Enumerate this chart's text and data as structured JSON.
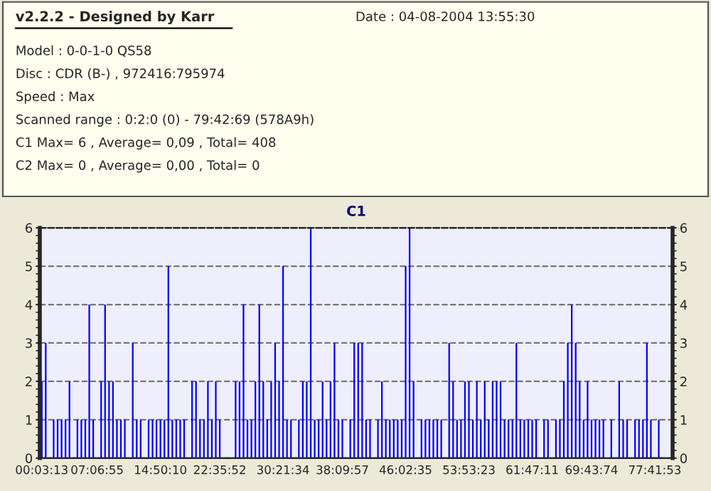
{
  "chart_data": [
    {
      "type": "other",
      "title": "v2.2.2 - Designed by Karr",
      "annotations": [
        "Date : 04-08-2004 13:55:30",
        "Model : 0-0-1-0 QS58",
        "Disc : CDR (B-) , 972416:795974",
        "Speed : Max",
        "Scanned range : 0:2:0 (0) - 79:42:69 (578A9h)",
        "C1 Max= 6 , Average= 0,09 , Total= 408",
        "C2 Max= 0 , Average= 0,00 , Total= 0"
      ]
    },
    {
      "type": "bar",
      "title": "C1",
      "color": "#0000ff",
      "grid": "y",
      "categories": [
        "00:03:13",
        null,
        null,
        null,
        null,
        null,
        null,
        null,
        null,
        null,
        null,
        null,
        null,
        null,
        "07:06:55",
        null,
        null,
        null,
        null,
        null,
        null,
        null,
        null,
        null,
        null,
        null,
        null,
        null,
        null,
        null,
        "14:50:10",
        null,
        null,
        null,
        null,
        null,
        null,
        null,
        null,
        null,
        null,
        null,
        null,
        null,
        null,
        "22:35:52",
        null,
        null,
        null,
        null,
        null,
        null,
        null,
        null,
        null,
        null,
        null,
        null,
        null,
        null,
        null,
        "30:21:34",
        null,
        null,
        null,
        null,
        null,
        null,
        null,
        null,
        null,
        null,
        null,
        null,
        null,
        null,
        "38:09:57",
        null,
        null,
        null,
        null,
        null,
        null,
        null,
        null,
        null,
        null,
        null,
        null,
        null,
        null,
        null,
        "46:02:35",
        null,
        null,
        null,
        null,
        null,
        null,
        null,
        null,
        null,
        null,
        null,
        null,
        null,
        null,
        null,
        "53:53:23",
        null,
        null,
        null,
        null,
        null,
        null,
        null,
        null,
        null,
        null,
        null,
        null,
        null,
        null,
        null,
        "61:47:11",
        null,
        null,
        null,
        null,
        null,
        null,
        null,
        null,
        null,
        null,
        null,
        null,
        null,
        null,
        "69:43:74",
        null,
        null,
        null,
        null,
        null,
        null,
        null,
        null,
        null,
        null,
        null,
        null,
        null,
        null,
        null,
        "77:41:53",
        null,
        null,
        null,
        null
      ],
      "values": [
        2,
        3,
        0,
        1,
        1,
        1,
        1,
        2,
        0,
        1,
        1,
        1,
        4,
        1,
        0,
        2,
        4,
        2,
        2,
        1,
        1,
        1,
        0,
        3,
        1,
        1,
        0,
        1,
        1,
        1,
        1,
        1,
        5,
        1,
        1,
        1,
        1,
        0,
        2,
        2,
        1,
        1,
        2,
        1,
        2,
        1,
        0,
        0,
        0,
        2,
        2,
        4,
        1,
        1,
        2,
        4,
        2,
        1,
        2,
        3,
        2,
        5,
        1,
        1,
        0,
        1,
        2,
        2,
        6,
        1,
        1,
        2,
        1,
        2,
        3,
        1,
        1,
        0,
        1,
        3,
        3,
        3,
        1,
        1,
        0,
        1,
        2,
        1,
        1,
        1,
        1,
        1,
        5,
        6,
        2,
        0,
        1,
        1,
        1,
        1,
        1,
        1,
        0,
        3,
        2,
        1,
        1,
        2,
        2,
        1,
        2,
        1,
        2,
        1,
        2,
        2,
        2,
        1,
        1,
        1,
        3,
        1,
        1,
        1,
        1,
        1,
        0,
        1,
        1,
        0,
        1,
        1,
        2,
        3,
        4,
        3,
        2,
        1,
        2,
        1,
        1,
        1,
        1,
        0,
        1,
        0,
        2,
        1,
        1,
        0,
        1,
        1,
        1,
        3,
        1,
        0,
        1,
        0,
        0,
        0
      ],
      "ylim": [
        0,
        6
      ],
      "yticks": [
        0,
        1,
        2,
        3,
        4,
        5,
        6
      ],
      "y2lim": [
        0,
        6
      ],
      "y2ticks": [
        0,
        1,
        2,
        3,
        4,
        5,
        6
      ]
    }
  ]
}
